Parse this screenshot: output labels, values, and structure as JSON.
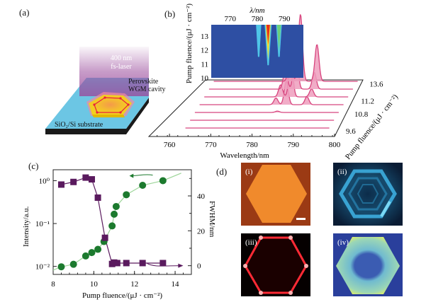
{
  "panels": {
    "a": {
      "label": "(a)",
      "laser_label_line1": "400 nm",
      "laser_label_line2": "fs-laser",
      "cavity_label_line1": "Perovskite",
      "cavity_label_line2": "WGM cavity",
      "substrate_label": "SiO₂/Si substrate",
      "colors": {
        "substrate_top": "#6cc6e4",
        "substrate_side": "#1a1a1a",
        "cavity": "#f3d21c",
        "laser": "#9a4a9c",
        "wgm_path": "#e8203c"
      }
    },
    "b": {
      "label": "(b)"
    },
    "c": {
      "label": "(c)"
    },
    "d": {
      "label": "(d)",
      "images": [
        {
          "label": "(i)",
          "kind": "optical",
          "colors": [
            "#9b3a14",
            "#f08a2c"
          ],
          "scale_bar": true
        },
        {
          "label": "(ii)",
          "kind": "mode-pattern",
          "colors": [
            "#0a1830",
            "#3fb4e6"
          ]
        },
        {
          "label": "(iii)",
          "kind": "emission",
          "colors": [
            "#050000",
            "#ff2a35"
          ]
        },
        {
          "label": "(iv)",
          "kind": "simulation",
          "colors": [
            "#2a3f9c",
            "#7ad0c8",
            "#e8f060"
          ]
        }
      ]
    }
  },
  "chart_data": [
    {
      "id": "b-waterfall",
      "type": "line",
      "title": "",
      "xlabel": "Wavelength/nm",
      "zlabel": "Pump fluence/(μJ · cm⁻²)",
      "xlim": [
        755,
        800
      ],
      "x_ticks": [
        "760",
        "770",
        "780",
        "790",
        "800"
      ],
      "z_ticks": [
        "9.6",
        "10.8",
        "11.2",
        "13.6"
      ],
      "line_color": "#d8467f",
      "fill_color": "#ee9ebd",
      "series": [
        {
          "name": "9.6",
          "peaks": []
        },
        {
          "name": "10.0",
          "peaks": []
        },
        {
          "name": "10.4",
          "peaks": [
            {
              "x": 783,
              "h": 0.02
            }
          ]
        },
        {
          "name": "10.8",
          "peaks": [
            {
              "x": 781.5,
              "h": 0.1
            },
            {
              "x": 784,
              "h": 0.35
            },
            {
              "x": 789,
              "h": 0.12
            }
          ]
        },
        {
          "name": "11.2",
          "peaks": [
            {
              "x": 781.5,
              "h": 0.18
            },
            {
              "x": 784,
              "h": 0.55
            },
            {
              "x": 789,
              "h": 0.12
            }
          ]
        },
        {
          "name": "12.4",
          "peaks": [
            {
              "x": 781.5,
              "h": 0.3
            },
            {
              "x": 784,
              "h": 0.75
            },
            {
              "x": 788.5,
              "h": 0.25
            }
          ]
        },
        {
          "name": "13.6",
          "peaks": [
            {
              "x": 781.5,
              "h": 0.3
            },
            {
              "x": 784,
              "h": 1.0
            },
            {
              "x": 788,
              "h": 0.55
            }
          ]
        }
      ]
    },
    {
      "id": "b-inset-heatmap",
      "type": "heatmap",
      "xlabel": "λ/nm",
      "ylabel": "Pump fluence/(μJ · cm⁻²)",
      "xlim": [
        763,
        797
      ],
      "ylim": [
        10,
        13.8
      ],
      "x_ticks": [
        "770",
        "780",
        "790"
      ],
      "y_ticks": [
        "10",
        "11",
        "12",
        "13"
      ],
      "background": "#2e4fa3",
      "modes": [
        {
          "x": 780.5,
          "onset": 11.5,
          "strength": 0.35
        },
        {
          "x": 784,
          "onset": 10.9,
          "strength": 1.0
        },
        {
          "x": 788,
          "onset": 11.5,
          "strength": 0.5
        }
      ]
    },
    {
      "id": "c-threshold",
      "type": "scatter",
      "xlabel": "Pump fluence/(μJ · cm⁻²)",
      "ylabel": "Intensity/a.u.",
      "y2label": "FWHM/nm",
      "xlim": [
        8,
        14.8
      ],
      "ylim_log": [
        0.0065,
        1.8
      ],
      "y2lim": [
        -5,
        55
      ],
      "x_ticks": [
        "8",
        "10",
        "12",
        "14"
      ],
      "y_ticks": [
        "10⁰",
        "10⁻¹",
        "10⁻²"
      ],
      "y2_ticks": [
        "0",
        "20",
        "40"
      ],
      "series": [
        {
          "name": "Intensity",
          "axis": "left",
          "marker": "circle",
          "color": "#1c7a2e",
          "fit_color": "#9ed69a",
          "x": [
            8.4,
            9.0,
            9.6,
            9.9,
            10.2,
            10.5,
            10.9,
            11.0,
            11.1,
            11.6,
            12.4,
            13.4
          ],
          "y": [
            0.0098,
            0.0112,
            0.0175,
            0.021,
            0.025,
            0.038,
            0.088,
            0.165,
            0.25,
            0.47,
            0.78,
            1.0
          ]
        },
        {
          "name": "FWHM",
          "axis": "right",
          "marker": "square",
          "color": "#5a1a5e",
          "x": [
            8.4,
            9.0,
            9.6,
            9.9,
            10.2,
            10.55,
            10.9,
            11.0,
            11.15,
            11.6,
            12.4,
            13.4
          ],
          "y": [
            46.5,
            48,
            50.5,
            49.5,
            39,
            16,
            1.0,
            1.8,
            1.5,
            1.5,
            1.5,
            1.5
          ]
        }
      ]
    }
  ]
}
